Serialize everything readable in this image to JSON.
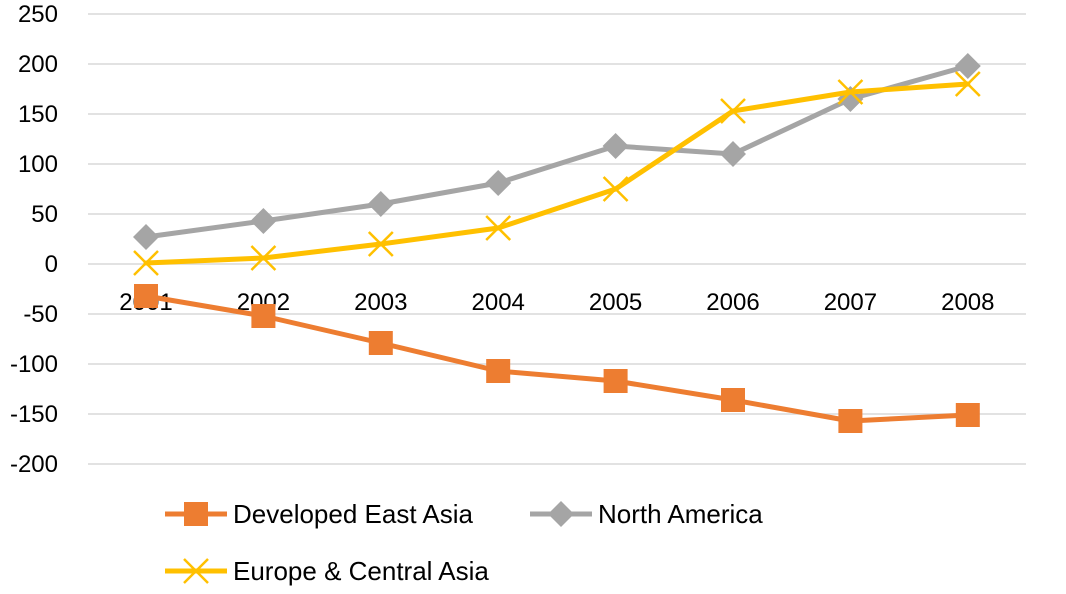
{
  "chart_data": {
    "type": "line",
    "categories": [
      "2001",
      "2002",
      "2003",
      "2004",
      "2005",
      "2006",
      "2007",
      "2008"
    ],
    "ylim": [
      -200,
      250
    ],
    "yticks": [
      250,
      200,
      150,
      100,
      50,
      0,
      -50,
      -100,
      -150,
      -200
    ],
    "grid": true,
    "legend_position": "bottom",
    "series": [
      {
        "name": "Developed East Asia",
        "color": "#ed7d31",
        "marker": "square",
        "values": [
          -32,
          -52,
          -79,
          -107,
          -117,
          -136,
          -157,
          -151
        ]
      },
      {
        "name": "North America",
        "color": "#a5a5a5",
        "marker": "diamond",
        "values": [
          27,
          43,
          60,
          81,
          118,
          110,
          165,
          198
        ]
      },
      {
        "name": "Europe & Central Asia",
        "color": "#ffc000",
        "marker": "x",
        "values": [
          1,
          6,
          20,
          36,
          75,
          153,
          172,
          180
        ]
      }
    ]
  }
}
